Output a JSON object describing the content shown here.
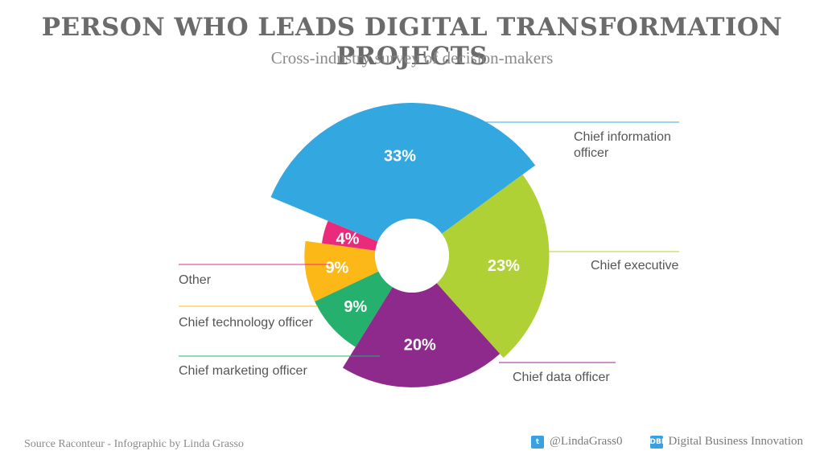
{
  "header": {
    "title": "PERSON WHO LEADS DIGITAL TRANSFORMATION PROJECTS",
    "subtitle": "Cross-industry survey of decision-makers"
  },
  "footer": {
    "source": "Source Raconteur - Infographic by Linda Grasso",
    "twitter_handle": "@LindaGrass0",
    "brand": "Digital Business Innovation",
    "twitter_icon": "twitter-icon",
    "brand_icon": "dbi-logo-icon"
  },
  "chart_data": {
    "type": "pie",
    "title": "PERSON WHO LEADS DIGITAL TRANSFORMATION PROJECTS",
    "subtitle": "Cross-industry survey of decision-makers",
    "unit": "%",
    "slices": [
      {
        "name": "Chief information officer",
        "value": 33,
        "label": "33%",
        "color": "#33a8e0"
      },
      {
        "name": "Chief executive",
        "value": 23,
        "label": "23%",
        "color": "#afd135"
      },
      {
        "name": "Chief data officer",
        "value": 20,
        "label": "20%",
        "color": "#8e2a8c"
      },
      {
        "name": "Chief marketing officer",
        "value": 9,
        "label": "9%",
        "color": "#26b06e"
      },
      {
        "name": "Chief technology officer",
        "value": 9,
        "label": "9%",
        "color": "#fbb817"
      },
      {
        "name": "Other",
        "value": 4,
        "label": "4%",
        "color": "#ea2b7b"
      }
    ]
  }
}
